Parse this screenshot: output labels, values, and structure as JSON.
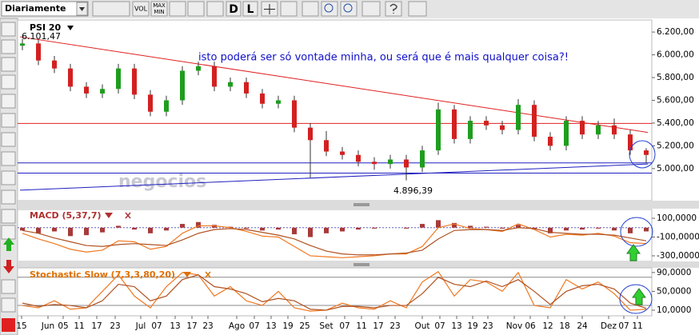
{
  "toolbar": {
    "period": "Diariamente",
    "buttons": [
      "VOL",
      "MAX",
      "MIN",
      "D",
      "L"
    ]
  },
  "chart_data": [
    {
      "type": "candlestick",
      "name": "PSI 20",
      "up_color": "#1e9e1e",
      "down_color": "#d42020",
      "open": [
        6080,
        6100,
        5950,
        5880,
        5720,
        5660,
        5700,
        5880,
        5650,
        5500,
        5600,
        5860,
        5900,
        5720,
        5760,
        5660,
        5570,
        5600,
        5360,
        5250,
        5150,
        5120,
        5060,
        5040,
        5080,
        5010,
        5160,
        5520,
        5260,
        5420,
        5380,
        5340,
        5560,
        5280,
        5200,
        5420,
        5300,
        5380,
        5300,
        5160
      ],
      "high": [
        6140,
        6130,
        5990,
        5920,
        5760,
        5740,
        5920,
        5920,
        5690,
        5640,
        5900,
        5940,
        5940,
        5800,
        5800,
        5700,
        5640,
        5640,
        5400,
        5330,
        5190,
        5160,
        5100,
        5120,
        5120,
        5200,
        5580,
        5560,
        5460,
        5460,
        5420,
        5610,
        5600,
        5320,
        5460,
        5460,
        5420,
        5440,
        5340,
        5180
      ],
      "low": [
        6040,
        5910,
        5840,
        5680,
        5620,
        5620,
        5660,
        5610,
        5460,
        5460,
        5560,
        5820,
        5680,
        5680,
        5620,
        5530,
        5530,
        5320,
        4920,
        5110,
        5080,
        5020,
        4990,
        5000,
        4896.39,
        4970,
        5120,
        5220,
        5220,
        5340,
        5300,
        5300,
        5240,
        5160,
        5160,
        5260,
        5260,
        5260,
        5120,
        5050
      ],
      "close": [
        6100,
        5950,
        5880,
        5720,
        5660,
        5700,
        5880,
        5650,
        5500,
        5600,
        5860,
        5900,
        5720,
        5760,
        5660,
        5570,
        5600,
        5360,
        5250,
        5150,
        5120,
        5060,
        5040,
        5080,
        5010,
        5160,
        5520,
        5260,
        5420,
        5380,
        5340,
        5560,
        5280,
        5200,
        5420,
        5300,
        5380,
        5300,
        5160,
        5120
      ],
      "ylim": [
        4718,
        6306
      ],
      "yticks": [
        {
          "value": 6200,
          "label": "6.200,00"
        },
        {
          "value": 6000,
          "label": "6.000,00"
        },
        {
          "value": 5800,
          "label": "5.800,00"
        },
        {
          "value": 5600,
          "label": "5.600,00"
        },
        {
          "value": 5400,
          "label": "5.400,00"
        },
        {
          "value": 5200,
          "label": "5.200,00"
        },
        {
          "value": 5000,
          "label": "5.000,00"
        }
      ],
      "lines": [
        {
          "color": "#e02020",
          "x": [
            -0.15,
            39.1
          ],
          "y": [
            6158,
            5318
          ]
        },
        {
          "color": "#2020c0",
          "x": [
            -0.15,
            39.1
          ],
          "y": [
            4810,
            5040
          ]
        }
      ],
      "hlines": [
        {
          "value": 5397,
          "color": "#e02020"
        },
        {
          "value": 5050,
          "color": "#2020c0"
        },
        {
          "value": 4960,
          "color": "#2020c0"
        }
      ],
      "annotations": [
        {
          "text": "6.101,47",
          "color": "#000000"
        },
        {
          "text": "isto poderá ser só vontade minha, ou será que é mais qualquer coisa?!",
          "color": "#1010c8"
        },
        {
          "text": "4.896,39",
          "color": "#000000"
        }
      ],
      "watermark": "negocios"
    },
    {
      "type": "macd",
      "title": "MACD (5,37,7)",
      "title_color": "#b03030",
      "ylim": [
        -360000,
        194000
      ],
      "yticks": [
        {
          "value": 100000,
          "label": "100,0000"
        },
        {
          "value": -100000,
          "label": "-100,0000"
        },
        {
          "value": -300000,
          "label": "-300,0000"
        }
      ],
      "series": [
        {
          "type": "bar",
          "color": "#a83a3a",
          "values": [
            -30000,
            -60000,
            -40000,
            -90000,
            -80000,
            -50000,
            20000,
            -20000,
            -60000,
            -30000,
            40000,
            60000,
            30000,
            10000,
            -10000,
            -30000,
            -20000,
            -70000,
            -100000,
            -60000,
            -40000,
            -20000,
            -10000,
            0,
            -10000,
            40000,
            80000,
            50000,
            20000,
            10000,
            -10000,
            30000,
            -20000,
            -60000,
            -30000,
            -20000,
            -10000,
            -30000,
            -60000,
            -40000
          ]
        },
        {
          "type": "line",
          "color": "#f07820",
          "values": [
            -60000,
            -120000,
            -170000,
            -230000,
            -260000,
            -240000,
            -140000,
            -150000,
            -230000,
            -200000,
            -60000,
            20000,
            20000,
            0,
            -40000,
            -90000,
            -100000,
            -200000,
            -300000,
            -310000,
            -320000,
            -310000,
            -300000,
            -280000,
            -280000,
            -200000,
            0,
            40000,
            -10000,
            -20000,
            -40000,
            40000,
            -20000,
            -100000,
            -70000,
            -80000,
            -60000,
            -90000,
            -160000,
            -170000
          ]
        },
        {
          "type": "line",
          "color": "#b05020",
          "values": [
            -30000,
            -60000,
            -110000,
            -150000,
            -190000,
            -200000,
            -180000,
            -170000,
            -180000,
            -190000,
            -130000,
            -60000,
            -20000,
            -10000,
            -20000,
            -50000,
            -80000,
            -120000,
            -190000,
            -250000,
            -280000,
            -290000,
            -290000,
            -280000,
            -270000,
            -240000,
            -120000,
            -30000,
            -20000,
            -20000,
            -30000,
            0,
            -10000,
            -50000,
            -60000,
            -70000,
            -70000,
            -80000,
            -110000,
            -140000
          ]
        }
      ]
    },
    {
      "type": "stochastic",
      "title": "Stochastic Slow (7,3,3,80,20)",
      "title_color": "#e07000",
      "ylim": [
        -2,
        100
      ],
      "yticks": [
        {
          "value": 90,
          "label": "90,0000"
        },
        {
          "value": 50,
          "label": "50,0000"
        },
        {
          "value": 10,
          "label": "10,0000"
        }
      ],
      "levels": [
        80,
        20
      ],
      "series": [
        {
          "type": "line",
          "color": "#f07820",
          "values": [
            20,
            15,
            30,
            12,
            15,
            50,
            85,
            40,
            15,
            60,
            90,
            85,
            40,
            60,
            30,
            20,
            50,
            15,
            8,
            10,
            25,
            15,
            12,
            30,
            15,
            70,
            92,
            40,
            75,
            70,
            50,
            90,
            20,
            15,
            75,
            55,
            70,
            45,
            10,
            12
          ]
        },
        {
          "type": "line",
          "color": "#b05020",
          "values": [
            25,
            18,
            22,
            20,
            15,
            30,
            65,
            60,
            30,
            40,
            75,
            85,
            60,
            55,
            45,
            28,
            35,
            30,
            12,
            10,
            18,
            18,
            15,
            20,
            20,
            45,
            80,
            65,
            60,
            72,
            60,
            75,
            50,
            22,
            50,
            62,
            65,
            55,
            25,
            14
          ]
        }
      ],
      "xticks": [
        {
          "value": -0.05,
          "label": "15"
        },
        {
          "value": 1.6,
          "label": "Jun"
        },
        {
          "value": 2.55,
          "label": "05"
        },
        {
          "value": 3.55,
          "label": "11"
        },
        {
          "value": 4.65,
          "label": "17"
        },
        {
          "value": 5.8,
          "label": "23"
        },
        {
          "value": 7.4,
          "label": "Jul"
        },
        {
          "value": 8.4,
          "label": "07"
        },
        {
          "value": 9.55,
          "label": "13"
        },
        {
          "value": 10.6,
          "label": "17"
        },
        {
          "value": 11.6,
          "label": "23"
        },
        {
          "value": 13.4,
          "label": "Ago"
        },
        {
          "value": 14.5,
          "label": "07"
        },
        {
          "value": 15.55,
          "label": "13"
        },
        {
          "value": 16.6,
          "label": "19"
        },
        {
          "value": 17.65,
          "label": "25"
        },
        {
          "value": 19,
          "label": "Set"
        },
        {
          "value": 20.15,
          "label": "07"
        },
        {
          "value": 21.2,
          "label": "11"
        },
        {
          "value": 22.25,
          "label": "17"
        },
        {
          "value": 23.3,
          "label": "23"
        },
        {
          "value": 25,
          "label": "Out"
        },
        {
          "value": 26.1,
          "label": "07"
        },
        {
          "value": 27.15,
          "label": "13"
        },
        {
          "value": 28.15,
          "label": "19"
        },
        {
          "value": 29.1,
          "label": "23"
        },
        {
          "value": 30.75,
          "label": "Nov"
        },
        {
          "value": 31.75,
          "label": "06"
        },
        {
          "value": 32.85,
          "label": "12"
        },
        {
          "value": 33.9,
          "label": "18"
        },
        {
          "value": 35,
          "label": "24"
        },
        {
          "value": 36.65,
          "label": "Dez"
        },
        {
          "value": 37.6,
          "label": "07"
        },
        {
          "value": 38.45,
          "label": "11"
        }
      ]
    }
  ]
}
